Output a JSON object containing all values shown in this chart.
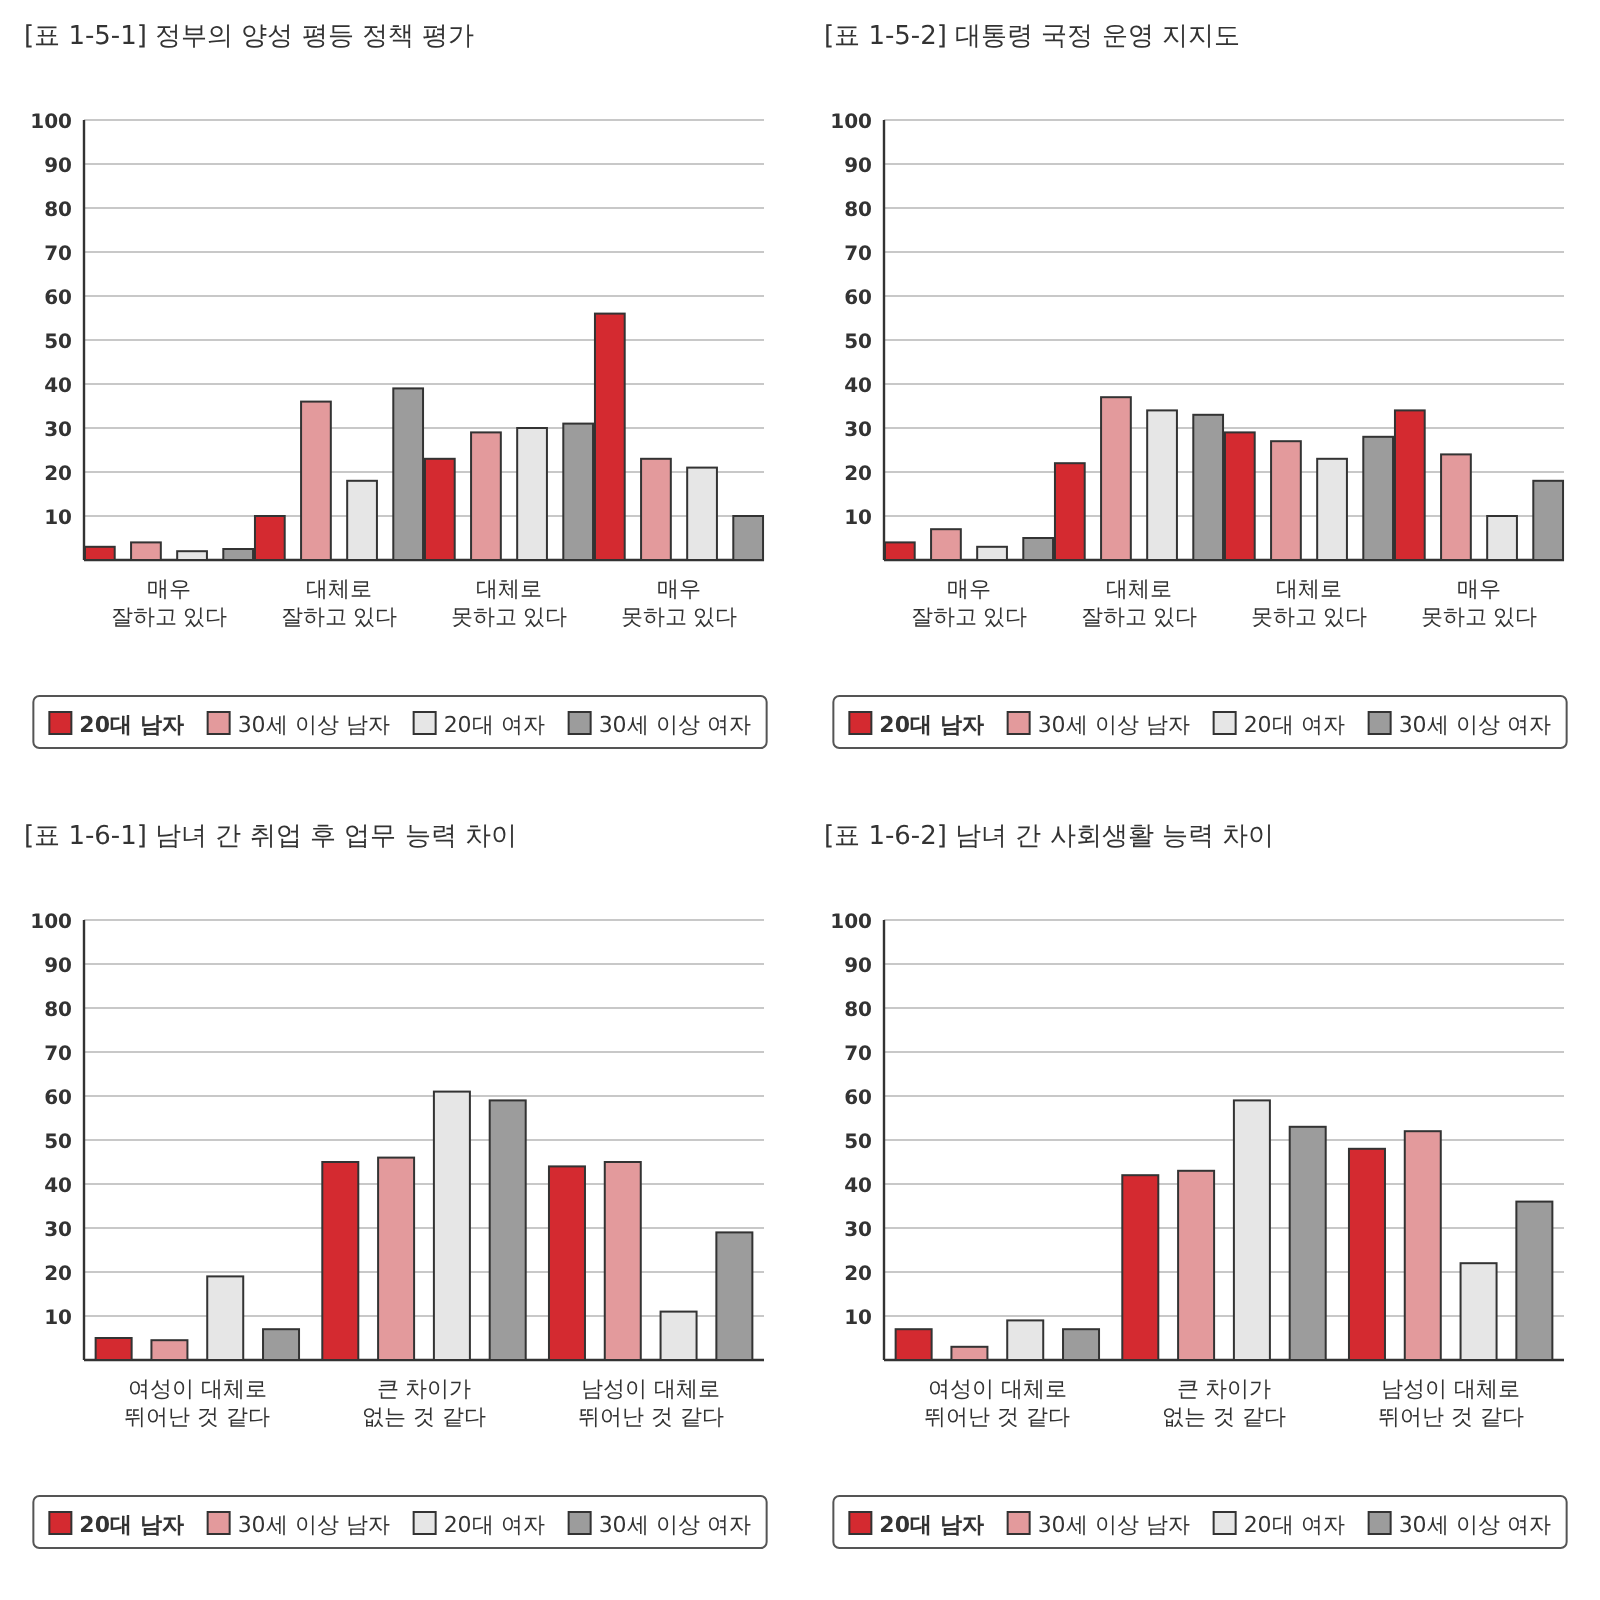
{
  "chart_data": [
    {
      "type": "bar",
      "title": "[표 1-5-1] 정부의 양성 평등 정책 평가",
      "categories": [
        "매우\n잘하고 있다",
        "대체로\n잘하고 있다",
        "대체로\n못하고 있다",
        "매우\n못하고 있다"
      ],
      "ylim": [
        0,
        100
      ],
      "yticks": [
        10,
        20,
        30,
        40,
        50,
        60,
        70,
        80,
        90,
        100
      ],
      "grid": "y",
      "legend": "bottom",
      "series": [
        {
          "name": "20대 남자",
          "color": "#d42a30",
          "values": [
            3,
            10,
            23,
            56
          ]
        },
        {
          "name": "30세 이상 남자",
          "color": "#e39a9c",
          "values": [
            4,
            36,
            29,
            23
          ]
        },
        {
          "name": "20대 여자",
          "color": "#e6e6e6",
          "values": [
            2,
            18,
            30,
            21
          ]
        },
        {
          "name": "30세 이상 여자",
          "color": "#9c9c9c",
          "values": [
            2.5,
            39,
            31,
            10
          ]
        }
      ]
    },
    {
      "type": "bar",
      "title": "[표 1-5-2] 대통령 국정 운영 지지도",
      "categories": [
        "매우\n잘하고 있다",
        "대체로\n잘하고 있다",
        "대체로\n못하고 있다",
        "매우\n못하고 있다"
      ],
      "ylim": [
        0,
        100
      ],
      "yticks": [
        10,
        20,
        30,
        40,
        50,
        60,
        70,
        80,
        90,
        100
      ],
      "grid": "y",
      "legend": "bottom",
      "series": [
        {
          "name": "20대 남자",
          "color": "#d42a30",
          "values": [
            4,
            22,
            29,
            34
          ]
        },
        {
          "name": "30세 이상 남자",
          "color": "#e39a9c",
          "values": [
            7,
            37,
            27,
            24
          ]
        },
        {
          "name": "20대 여자",
          "color": "#e6e6e6",
          "values": [
            3,
            34,
            23,
            10
          ]
        },
        {
          "name": "30세 이상 여자",
          "color": "#9c9c9c",
          "values": [
            5,
            33,
            28,
            18
          ]
        }
      ]
    },
    {
      "type": "bar",
      "title": "[표 1-6-1] 남녀 간 취업 후 업무 능력 차이",
      "categories": [
        "여성이 대체로\n뛰어난 것 같다",
        "큰 차이가\n없는 것 같다",
        "남성이 대체로\n뛰어난 것 같다"
      ],
      "ylim": [
        0,
        100
      ],
      "yticks": [
        10,
        20,
        30,
        40,
        50,
        60,
        70,
        80,
        90,
        100
      ],
      "grid": "y",
      "legend": "bottom",
      "series": [
        {
          "name": "20대 남자",
          "color": "#d42a30",
          "values": [
            5,
            45,
            44
          ]
        },
        {
          "name": "30세 이상 남자",
          "color": "#e39a9c",
          "values": [
            4.5,
            46,
            45
          ]
        },
        {
          "name": "20대 여자",
          "color": "#e6e6e6",
          "values": [
            19,
            61,
            11
          ]
        },
        {
          "name": "30세 이상 여자",
          "color": "#9c9c9c",
          "values": [
            7,
            59,
            29
          ]
        }
      ]
    },
    {
      "type": "bar",
      "title": "[표 1-6-2] 남녀 간 사회생활 능력 차이",
      "categories": [
        "여성이 대체로\n뛰어난 것 같다",
        "큰 차이가\n없는 것 같다",
        "남성이 대체로\n뛰어난 것 같다"
      ],
      "ylim": [
        0,
        100
      ],
      "yticks": [
        10,
        20,
        30,
        40,
        50,
        60,
        70,
        80,
        90,
        100
      ],
      "grid": "y",
      "legend": "bottom",
      "series": [
        {
          "name": "20대 남자",
          "color": "#d42a30",
          "values": [
            7,
            42,
            48
          ]
        },
        {
          "name": "30세 이상 남자",
          "color": "#e39a9c",
          "values": [
            3,
            43,
            52
          ]
        },
        {
          "name": "20대 여자",
          "color": "#e6e6e6",
          "values": [
            9,
            59,
            22
          ]
        },
        {
          "name": "30세 이상 여자",
          "color": "#9c9c9c",
          "values": [
            7,
            53,
            36
          ]
        }
      ]
    }
  ]
}
